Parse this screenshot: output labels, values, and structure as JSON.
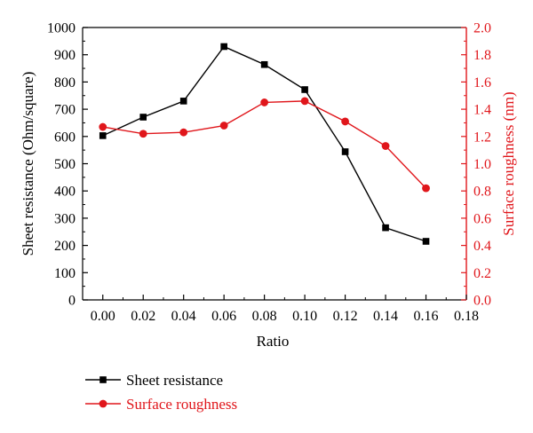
{
  "chart_data": {
    "type": "line",
    "xlabel": "Ratio",
    "ylabel_left": "Sheet resistance (Ohm/square)",
    "ylabel_right": "Surface roughness (nm)",
    "xlim": [
      -0.01,
      0.18
    ],
    "ylim_left": [
      0,
      1000
    ],
    "ylim_right": [
      0,
      2.0
    ],
    "x_ticks": [
      "0.00",
      "0.02",
      "0.04",
      "0.06",
      "0.08",
      "0.10",
      "0.12",
      "0.14",
      "0.16",
      "0.18"
    ],
    "y_ticks_left": [
      "0",
      "100",
      "200",
      "300",
      "400",
      "500",
      "600",
      "700",
      "800",
      "900",
      "1000"
    ],
    "y_ticks_right": [
      "0.0",
      "0.2",
      "0.4",
      "0.6",
      "0.8",
      "1.0",
      "1.2",
      "1.4",
      "1.6",
      "1.8",
      "2.0"
    ],
    "grid": false,
    "legend_position": "below",
    "colors": {
      "left_axis": "#000000",
      "right_axis": "#e0161b"
    },
    "series": [
      {
        "name": "Sheet resistance",
        "axis": "left",
        "marker": "square",
        "color": "#000000",
        "x": [
          0.0,
          0.02,
          0.04,
          0.06,
          0.08,
          0.1,
          0.12,
          0.14,
          0.16
        ],
        "y": [
          603,
          671,
          730,
          930,
          864,
          772,
          544,
          265,
          215
        ]
      },
      {
        "name": "Surface roughness",
        "axis": "right",
        "marker": "circle",
        "color": "#e0161b",
        "x": [
          0.0,
          0.02,
          0.04,
          0.06,
          0.08,
          0.1,
          0.12,
          0.14,
          0.16
        ],
        "y": [
          1.27,
          1.22,
          1.23,
          1.28,
          1.45,
          1.46,
          1.31,
          1.13,
          0.82
        ]
      }
    ]
  }
}
